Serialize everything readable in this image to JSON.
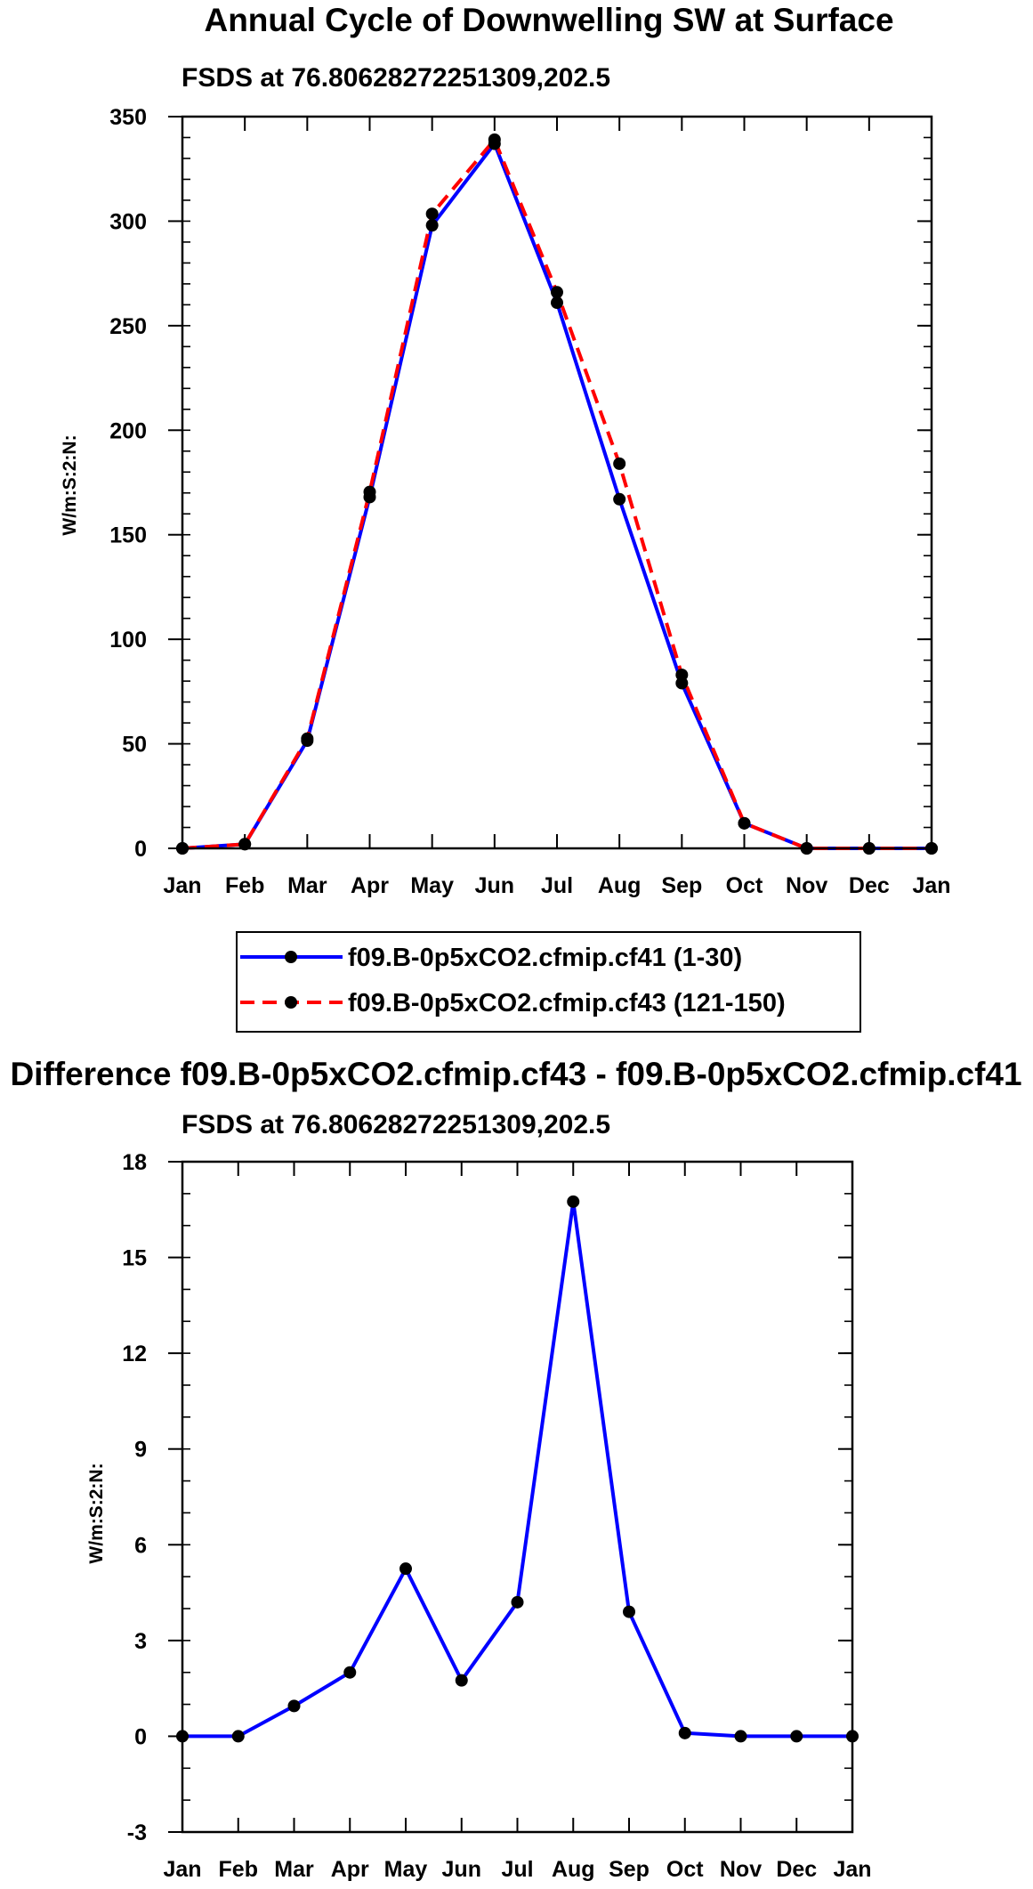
{
  "chart_data": [
    {
      "type": "line",
      "title": "Annual Cycle of Downwelling SW at Surface",
      "subtitle": "FSDS at 76.80628272251309,202.5",
      "xlabel": "",
      "ylabel": "W/m:S:2:N:",
      "categories": [
        "Jan",
        "Feb",
        "Mar",
        "Apr",
        "May",
        "Jun",
        "Jul",
        "Aug",
        "Sep",
        "Oct",
        "Nov",
        "Dec",
        "Jan"
      ],
      "ylim": [
        0,
        350
      ],
      "yticks": [
        0,
        50,
        100,
        150,
        200,
        250,
        300,
        350
      ],
      "yticks_labels": [
        "0",
        "50",
        "100",
        "150",
        "200",
        "250",
        "300",
        "350"
      ],
      "grid": false,
      "legend_position": "below",
      "series": [
        {
          "name": "f09.B-0p5xCO2.cfmip.cf41 (1-30)",
          "color": "#0000ff",
          "dash": "solid",
          "values": [
            0,
            2,
            51.5,
            168,
            298,
            337,
            261,
            167,
            79,
            12,
            0,
            0,
            0
          ]
        },
        {
          "name": "f09.B-0p5xCO2.cfmip.cf43 (121-150)",
          "color": "#ff0000",
          "dash": "dashed",
          "values": [
            0,
            2,
            52.5,
            170.5,
            303.5,
            339,
            266,
            184,
            83,
            12,
            0,
            0,
            0
          ]
        }
      ]
    },
    {
      "type": "line",
      "title": "Difference f09.B-0p5xCO2.cfmip.cf43 - f09.B-0p5xCO2.cfmip.cf41",
      "subtitle": "FSDS at 76.80628272251309,202.5",
      "xlabel": "",
      "ylabel": "W/m:S:2:N:",
      "categories": [
        "Jan",
        "Feb",
        "Mar",
        "Apr",
        "May",
        "Jun",
        "Jul",
        "Aug",
        "Sep",
        "Oct",
        "Nov",
        "Dec",
        "Jan"
      ],
      "ylim": [
        -3,
        18
      ],
      "yticks": [
        -3,
        0,
        3,
        6,
        9,
        12,
        15,
        18
      ],
      "yticks_labels": [
        "-3",
        "0",
        "3",
        "6",
        "9",
        "12",
        "15",
        "18"
      ],
      "grid": false,
      "series": [
        {
          "name": "Difference",
          "color": "#0000ff",
          "dash": "solid",
          "values": [
            0,
            0,
            0.95,
            2,
            5.25,
            1.75,
            4.2,
            16.75,
            3.9,
            0.1,
            0,
            0,
            0
          ]
        }
      ]
    }
  ]
}
